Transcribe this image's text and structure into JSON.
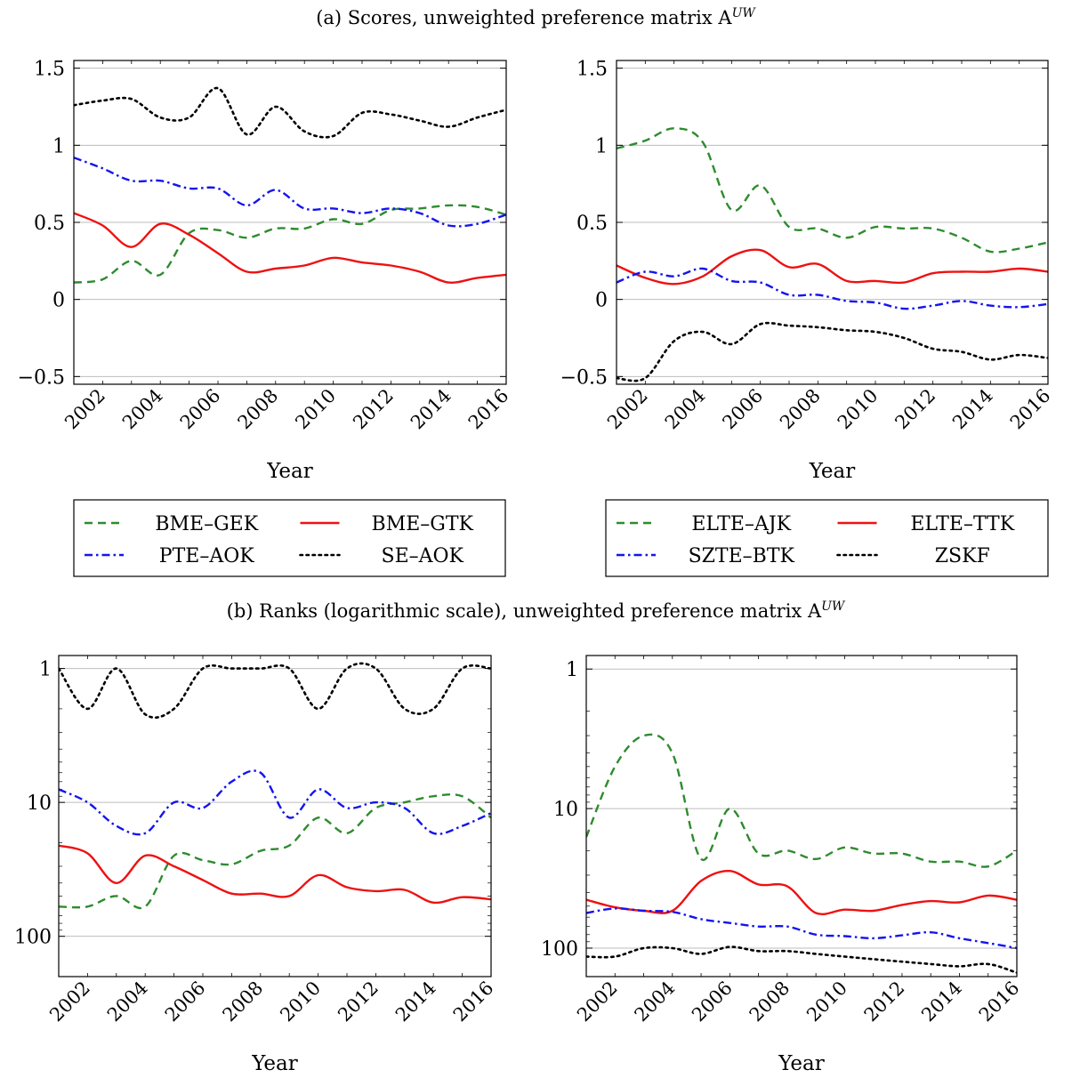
{
  "figure": {
    "caption_a": "(a) Scores, unweighted preference matrix A",
    "caption_a_sup": "UW",
    "caption_b": "(b) Ranks (logarithmic scale), unweighted preference matrix A",
    "caption_b_sup": "UW"
  },
  "colors": {
    "green": "#2e8b2e",
    "red": "#ee1111",
    "blue": "#1414ee",
    "black": "#000000",
    "grid": "#bdbdbd"
  },
  "chart_data": [
    {
      "id": "a-left",
      "type": "line",
      "xlabel": "Year",
      "ylabel": "",
      "title": "",
      "x": [
        2001,
        2002,
        2003,
        2004,
        2005,
        2006,
        2007,
        2008,
        2009,
        2010,
        2011,
        2012,
        2013,
        2014,
        2015,
        2016
      ],
      "xlim": [
        2001,
        2016
      ],
      "ylim": [
        -0.55,
        1.55
      ],
      "xticks": [
        2002,
        2004,
        2006,
        2008,
        2010,
        2012,
        2014,
        2016
      ],
      "yticks": [
        1.5,
        1,
        0.5,
        0,
        -0.5
      ],
      "ytick_labels": [
        "1.5",
        "1",
        "0.5",
        "0",
        "−0.5"
      ],
      "legend_position": "below",
      "series": [
        {
          "name": "BME–GEK",
          "color": "green",
          "style": "dashed",
          "values": [
            0.11,
            0.13,
            0.25,
            0.16,
            0.43,
            0.45,
            0.4,
            0.46,
            0.46,
            0.52,
            0.49,
            0.58,
            0.59,
            0.61,
            0.6,
            0.55
          ]
        },
        {
          "name": "BME–GTK",
          "color": "red",
          "style": "solid",
          "values": [
            0.56,
            0.48,
            0.34,
            0.49,
            0.42,
            0.3,
            0.18,
            0.2,
            0.22,
            0.27,
            0.24,
            0.22,
            0.18,
            0.11,
            0.14,
            0.16
          ]
        },
        {
          "name": "PTE–AOK",
          "color": "blue",
          "style": "dashdot",
          "values": [
            0.92,
            0.85,
            0.77,
            0.77,
            0.72,
            0.72,
            0.61,
            0.71,
            0.59,
            0.59,
            0.56,
            0.59,
            0.56,
            0.48,
            0.49,
            0.55
          ]
        },
        {
          "name": "SE–AOK",
          "color": "black",
          "style": "dotted",
          "values": [
            1.26,
            1.29,
            1.3,
            1.18,
            1.18,
            1.37,
            1.07,
            1.25,
            1.09,
            1.06,
            1.21,
            1.2,
            1.16,
            1.12,
            1.18,
            1.23
          ]
        }
      ]
    },
    {
      "id": "a-right",
      "type": "line",
      "xlabel": "Year",
      "ylabel": "",
      "title": "",
      "x": [
        2001,
        2002,
        2003,
        2004,
        2005,
        2006,
        2007,
        2008,
        2009,
        2010,
        2011,
        2012,
        2013,
        2014,
        2015,
        2016
      ],
      "xlim": [
        2001,
        2016
      ],
      "ylim": [
        -0.55,
        1.55
      ],
      "xticks": [
        2002,
        2004,
        2006,
        2008,
        2010,
        2012,
        2014,
        2016
      ],
      "yticks": [
        1.5,
        1,
        0.5,
        0,
        -0.5
      ],
      "ytick_labels": [
        "1.5",
        "1",
        "0.5",
        "0",
        "−0.5"
      ],
      "legend_position": "below",
      "series": [
        {
          "name": "ELTE–AJK",
          "color": "green",
          "style": "dashed",
          "values": [
            0.98,
            1.03,
            1.11,
            1.02,
            0.58,
            0.74,
            0.47,
            0.46,
            0.4,
            0.47,
            0.46,
            0.46,
            0.4,
            0.31,
            0.33,
            0.37
          ]
        },
        {
          "name": "ELTE–TTK",
          "color": "red",
          "style": "solid",
          "values": [
            0.22,
            0.14,
            0.1,
            0.15,
            0.28,
            0.32,
            0.21,
            0.23,
            0.12,
            0.12,
            0.11,
            0.17,
            0.18,
            0.18,
            0.2,
            0.18
          ]
        },
        {
          "name": "SZTE–BTK",
          "color": "blue",
          "style": "dashdot",
          "values": [
            0.11,
            0.18,
            0.15,
            0.2,
            0.12,
            0.11,
            0.03,
            0.03,
            -0.01,
            -0.02,
            -0.06,
            -0.04,
            -0.01,
            -0.04,
            -0.05,
            -0.03
          ]
        },
        {
          "name": "ZSKF",
          "color": "black",
          "style": "dotted",
          "values": [
            -0.51,
            -0.51,
            -0.27,
            -0.21,
            -0.29,
            -0.16,
            -0.17,
            -0.18,
            -0.2,
            -0.21,
            -0.25,
            -0.32,
            -0.34,
            -0.39,
            -0.36,
            -0.38
          ]
        }
      ]
    },
    {
      "id": "b-left",
      "type": "line",
      "xlabel": "Year",
      "ylabel": "",
      "title": "",
      "log_scale": true,
      "y_inverted": true,
      "x": [
        2001,
        2002,
        2003,
        2004,
        2005,
        2006,
        2007,
        2008,
        2009,
        2010,
        2011,
        2012,
        2013,
        2014,
        2015,
        2016
      ],
      "xlim": [
        2001,
        2016
      ],
      "ylim": [
        0.8,
        200
      ],
      "xticks": [
        2002,
        2004,
        2006,
        2008,
        2010,
        2012,
        2014,
        2016
      ],
      "yticks": [
        1,
        10,
        100
      ],
      "ytick_labels": [
        "1",
        "10",
        "100"
      ],
      "series": [
        {
          "name": "BME–GEK",
          "color": "green",
          "style": "dashed",
          "values": [
            60,
            60,
            50,
            60,
            25,
            27,
            29,
            23,
            21,
            13,
            17,
            11,
            10,
            9,
            9,
            13
          ]
        },
        {
          "name": "BME–GTK",
          "color": "red",
          "style": "solid",
          "values": [
            21,
            24,
            40,
            25,
            30,
            38,
            48,
            48,
            50,
            35,
            43,
            46,
            45,
            56,
            51,
            53
          ]
        },
        {
          "name": "PTE–AOK",
          "color": "blue",
          "style": "dashdot",
          "values": [
            8,
            10,
            15,
            17,
            10,
            11,
            7,
            6,
            13,
            8,
            11,
            10,
            11,
            17,
            15,
            12
          ]
        },
        {
          "name": "SE–AOK",
          "color": "black",
          "style": "dotted",
          "values": [
            1,
            2,
            1,
            2.2,
            2,
            1,
            1,
            1,
            1,
            2,
            1,
            1,
            2,
            2,
            1,
            1
          ]
        }
      ]
    },
    {
      "id": "b-right",
      "type": "line",
      "xlabel": "Year",
      "ylabel": "",
      "title": "",
      "log_scale": true,
      "y_inverted": true,
      "x": [
        2001,
        2002,
        2003,
        2004,
        2005,
        2006,
        2007,
        2008,
        2009,
        2010,
        2011,
        2012,
        2013,
        2014,
        2015,
        2016
      ],
      "xlim": [
        2001,
        2016
      ],
      "ylim": [
        0.8,
        160
      ],
      "xticks": [
        2002,
        2004,
        2006,
        2008,
        2010,
        2012,
        2014,
        2016
      ],
      "yticks": [
        1,
        10,
        100
      ],
      "ytick_labels": [
        "1",
        "10",
        "100"
      ],
      "series": [
        {
          "name": "ELTE–AJK",
          "color": "green",
          "style": "dashed",
          "values": [
            16,
            5,
            3,
            4,
            23,
            10,
            21,
            20,
            23,
            19,
            21,
            21,
            24,
            24,
            26,
            20
          ]
        },
        {
          "name": "ELTE–TTK",
          "color": "red",
          "style": "solid",
          "values": [
            45,
            51,
            54,
            54,
            33,
            28,
            35,
            36,
            56,
            53,
            54,
            49,
            46,
            47,
            42,
            45
          ]
        },
        {
          "name": "SZTE–BTK",
          "color": "blue",
          "style": "dashdot",
          "values": [
            56,
            52,
            54,
            55,
            62,
            66,
            70,
            70,
            80,
            82,
            85,
            81,
            77,
            85,
            92,
            100
          ]
        },
        {
          "name": "ZSKF",
          "color": "black",
          "style": "dotted",
          "values": [
            115,
            115,
            100,
            100,
            110,
            98,
            105,
            105,
            110,
            115,
            120,
            125,
            130,
            135,
            130,
            150
          ]
        }
      ]
    }
  ]
}
